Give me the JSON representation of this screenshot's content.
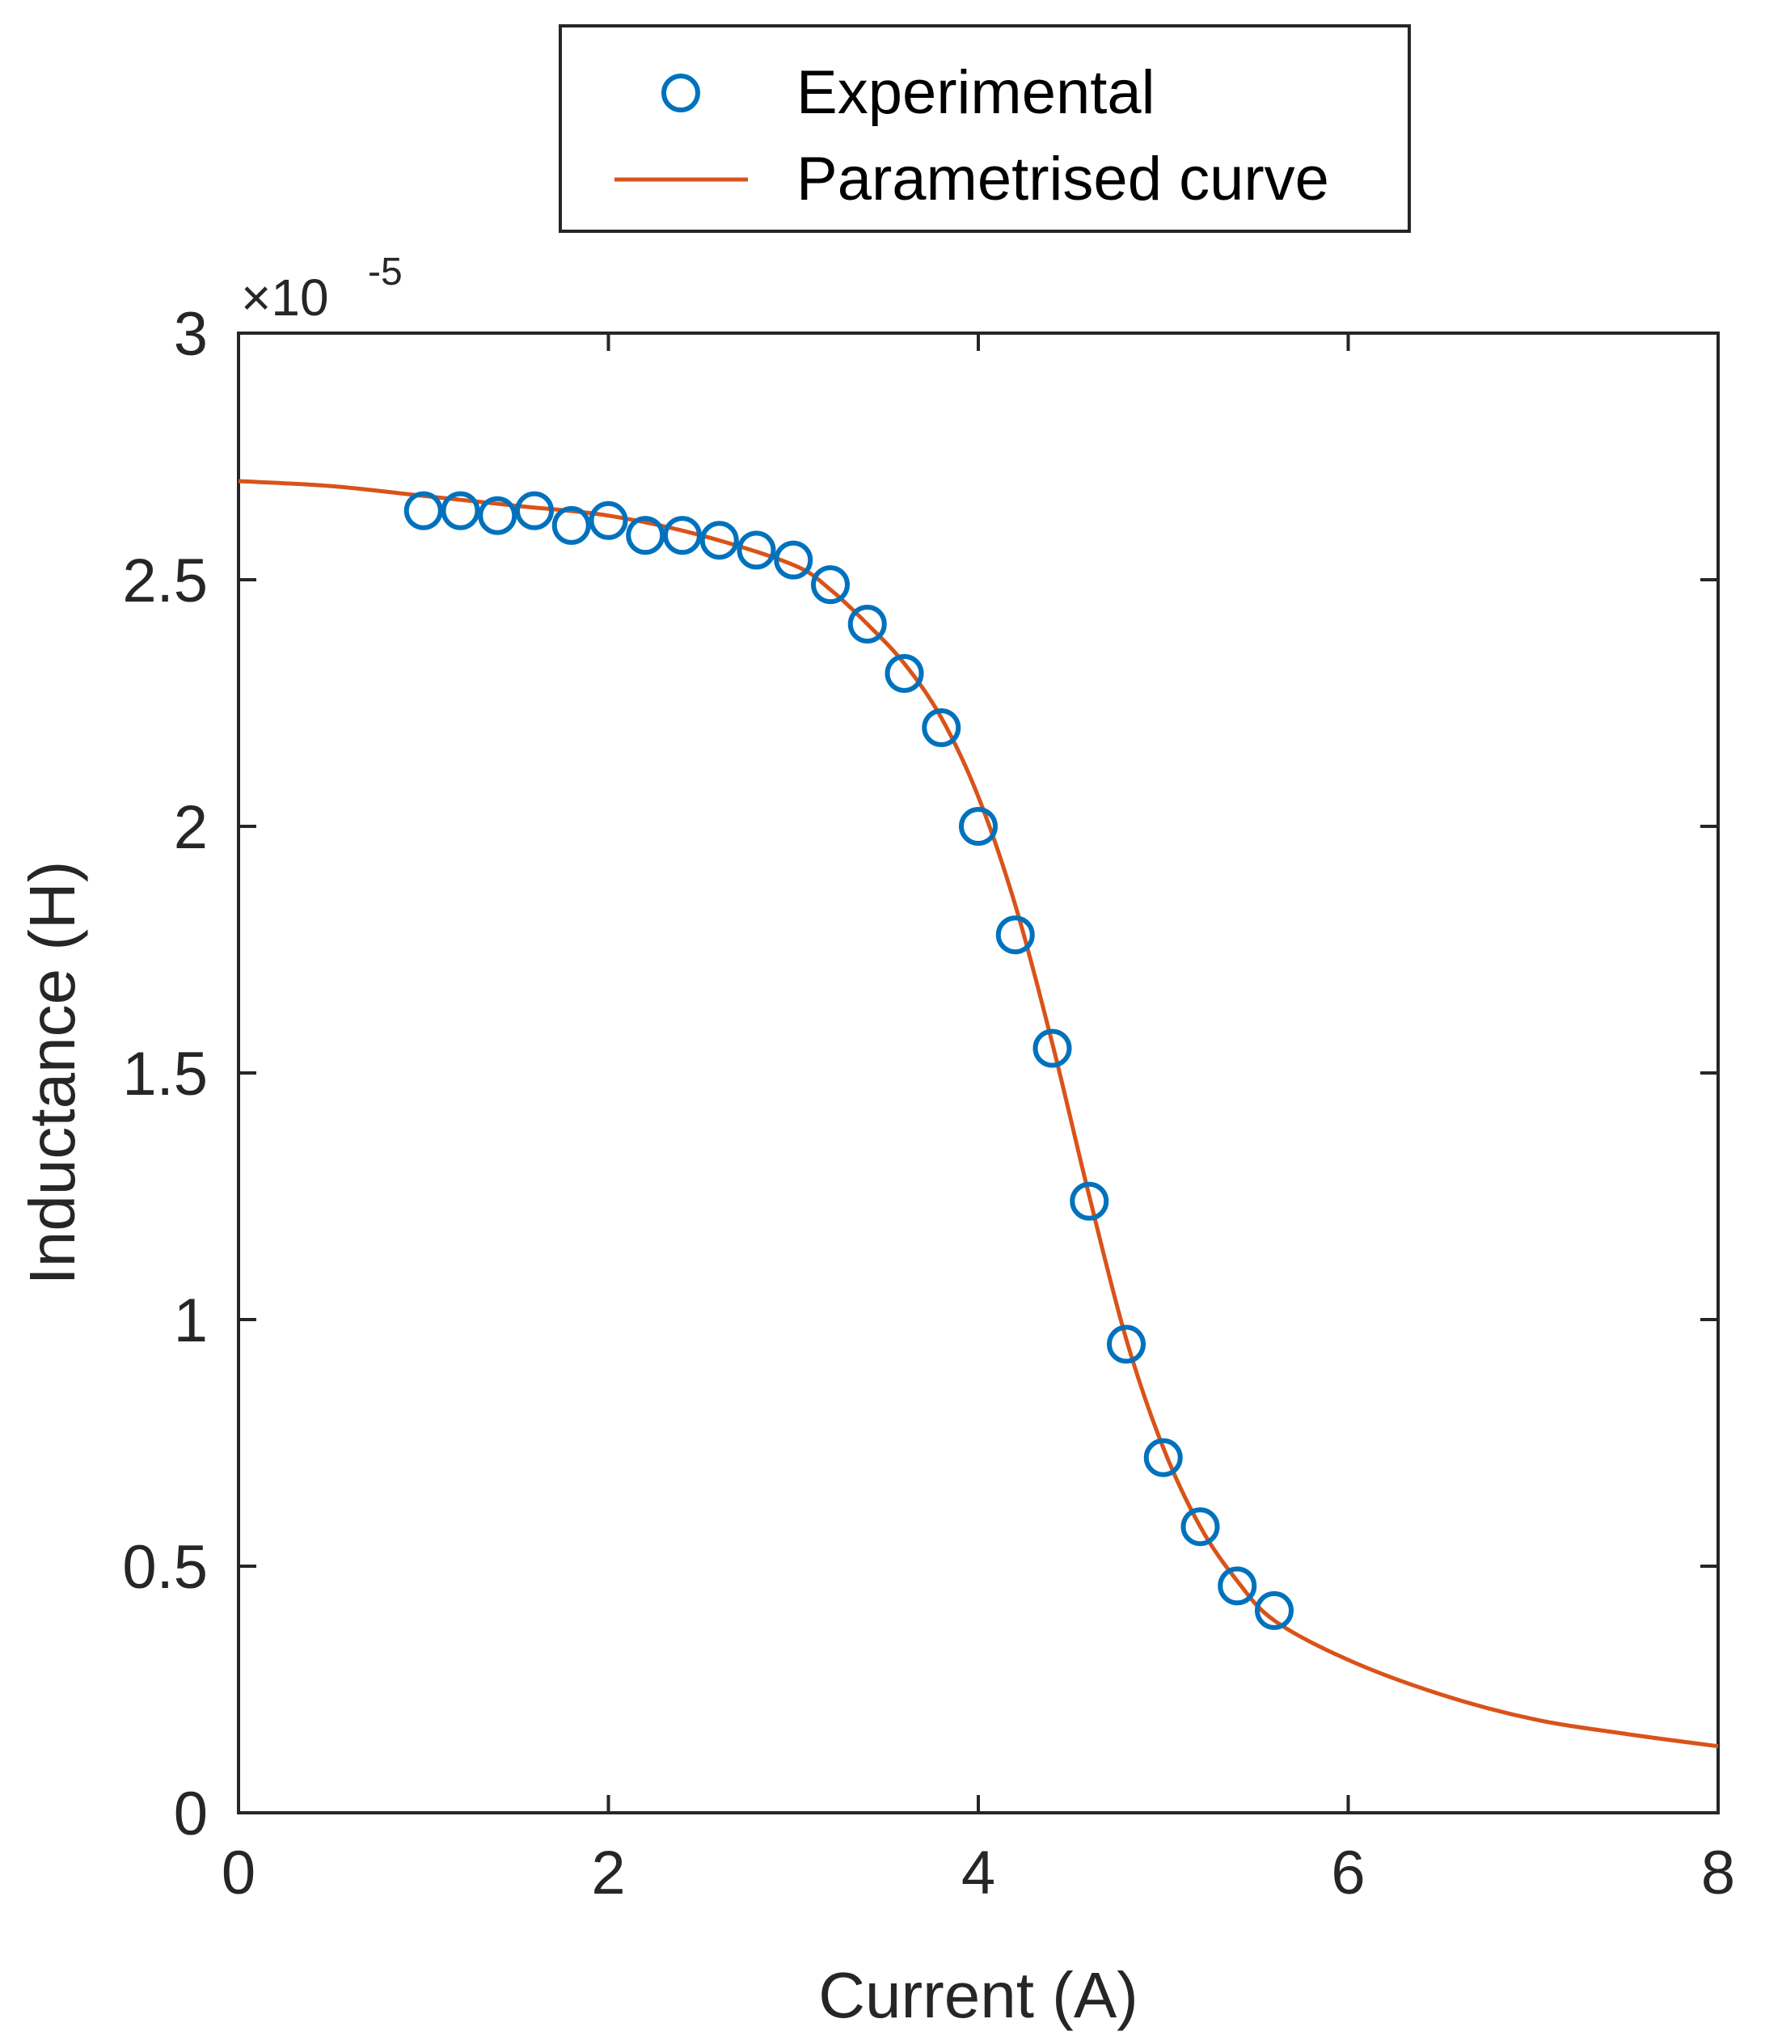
{
  "chart_data": {
    "type": "line",
    "xlabel": "Current (A)",
    "ylabel": "Inductance (H)",
    "xlim": [
      0,
      8
    ],
    "ylim": [
      0,
      3
    ],
    "xticks": [
      "0",
      "2",
      "4",
      "6",
      "8"
    ],
    "yticks": [
      "0",
      "0.5",
      "1",
      "1.5",
      "2",
      "2.5",
      "3"
    ],
    "y_exponent": {
      "base": "×10",
      "power": "-5"
    },
    "grid": false,
    "legend_position": "top-center",
    "colors": {
      "experimental": "#0072BD",
      "curve": "#D95319",
      "axis": "#262626"
    },
    "series": [
      {
        "name": "Experimental",
        "style": "markers",
        "marker": "circle-open",
        "x": [
          1.0,
          1.2,
          1.4,
          1.6,
          1.8,
          2.0,
          2.2,
          2.4,
          2.6,
          2.8,
          3.0,
          3.2,
          3.4,
          3.6,
          3.8,
          4.0,
          4.2,
          4.4,
          4.6,
          4.8,
          5.0,
          5.2,
          5.4,
          5.6
        ],
        "y": [
          2.64,
          2.64,
          2.63,
          2.64,
          2.61,
          2.62,
          2.59,
          2.59,
          2.58,
          2.56,
          2.54,
          2.49,
          2.41,
          2.31,
          2.2,
          2.0,
          1.78,
          1.55,
          1.24,
          0.95,
          0.72,
          0.58,
          0.46,
          0.41
        ]
      },
      {
        "name": "Parametrised curve",
        "style": "line",
        "x": [
          0,
          0.5,
          1.0,
          1.5,
          2.0,
          2.5,
          3.0,
          3.2,
          3.4,
          3.6,
          3.8,
          4.0,
          4.2,
          4.4,
          4.6,
          4.8,
          5.0,
          5.2,
          5.4,
          5.6,
          6.0,
          6.5,
          7.0,
          7.5,
          8.0
        ],
        "y": [
          2.7,
          2.69,
          2.67,
          2.65,
          2.63,
          2.59,
          2.53,
          2.48,
          2.41,
          2.33,
          2.22,
          2.06,
          1.84,
          1.56,
          1.25,
          0.96,
          0.74,
          0.58,
          0.47,
          0.39,
          0.31,
          0.24,
          0.19,
          0.16,
          0.135
        ]
      }
    ]
  }
}
